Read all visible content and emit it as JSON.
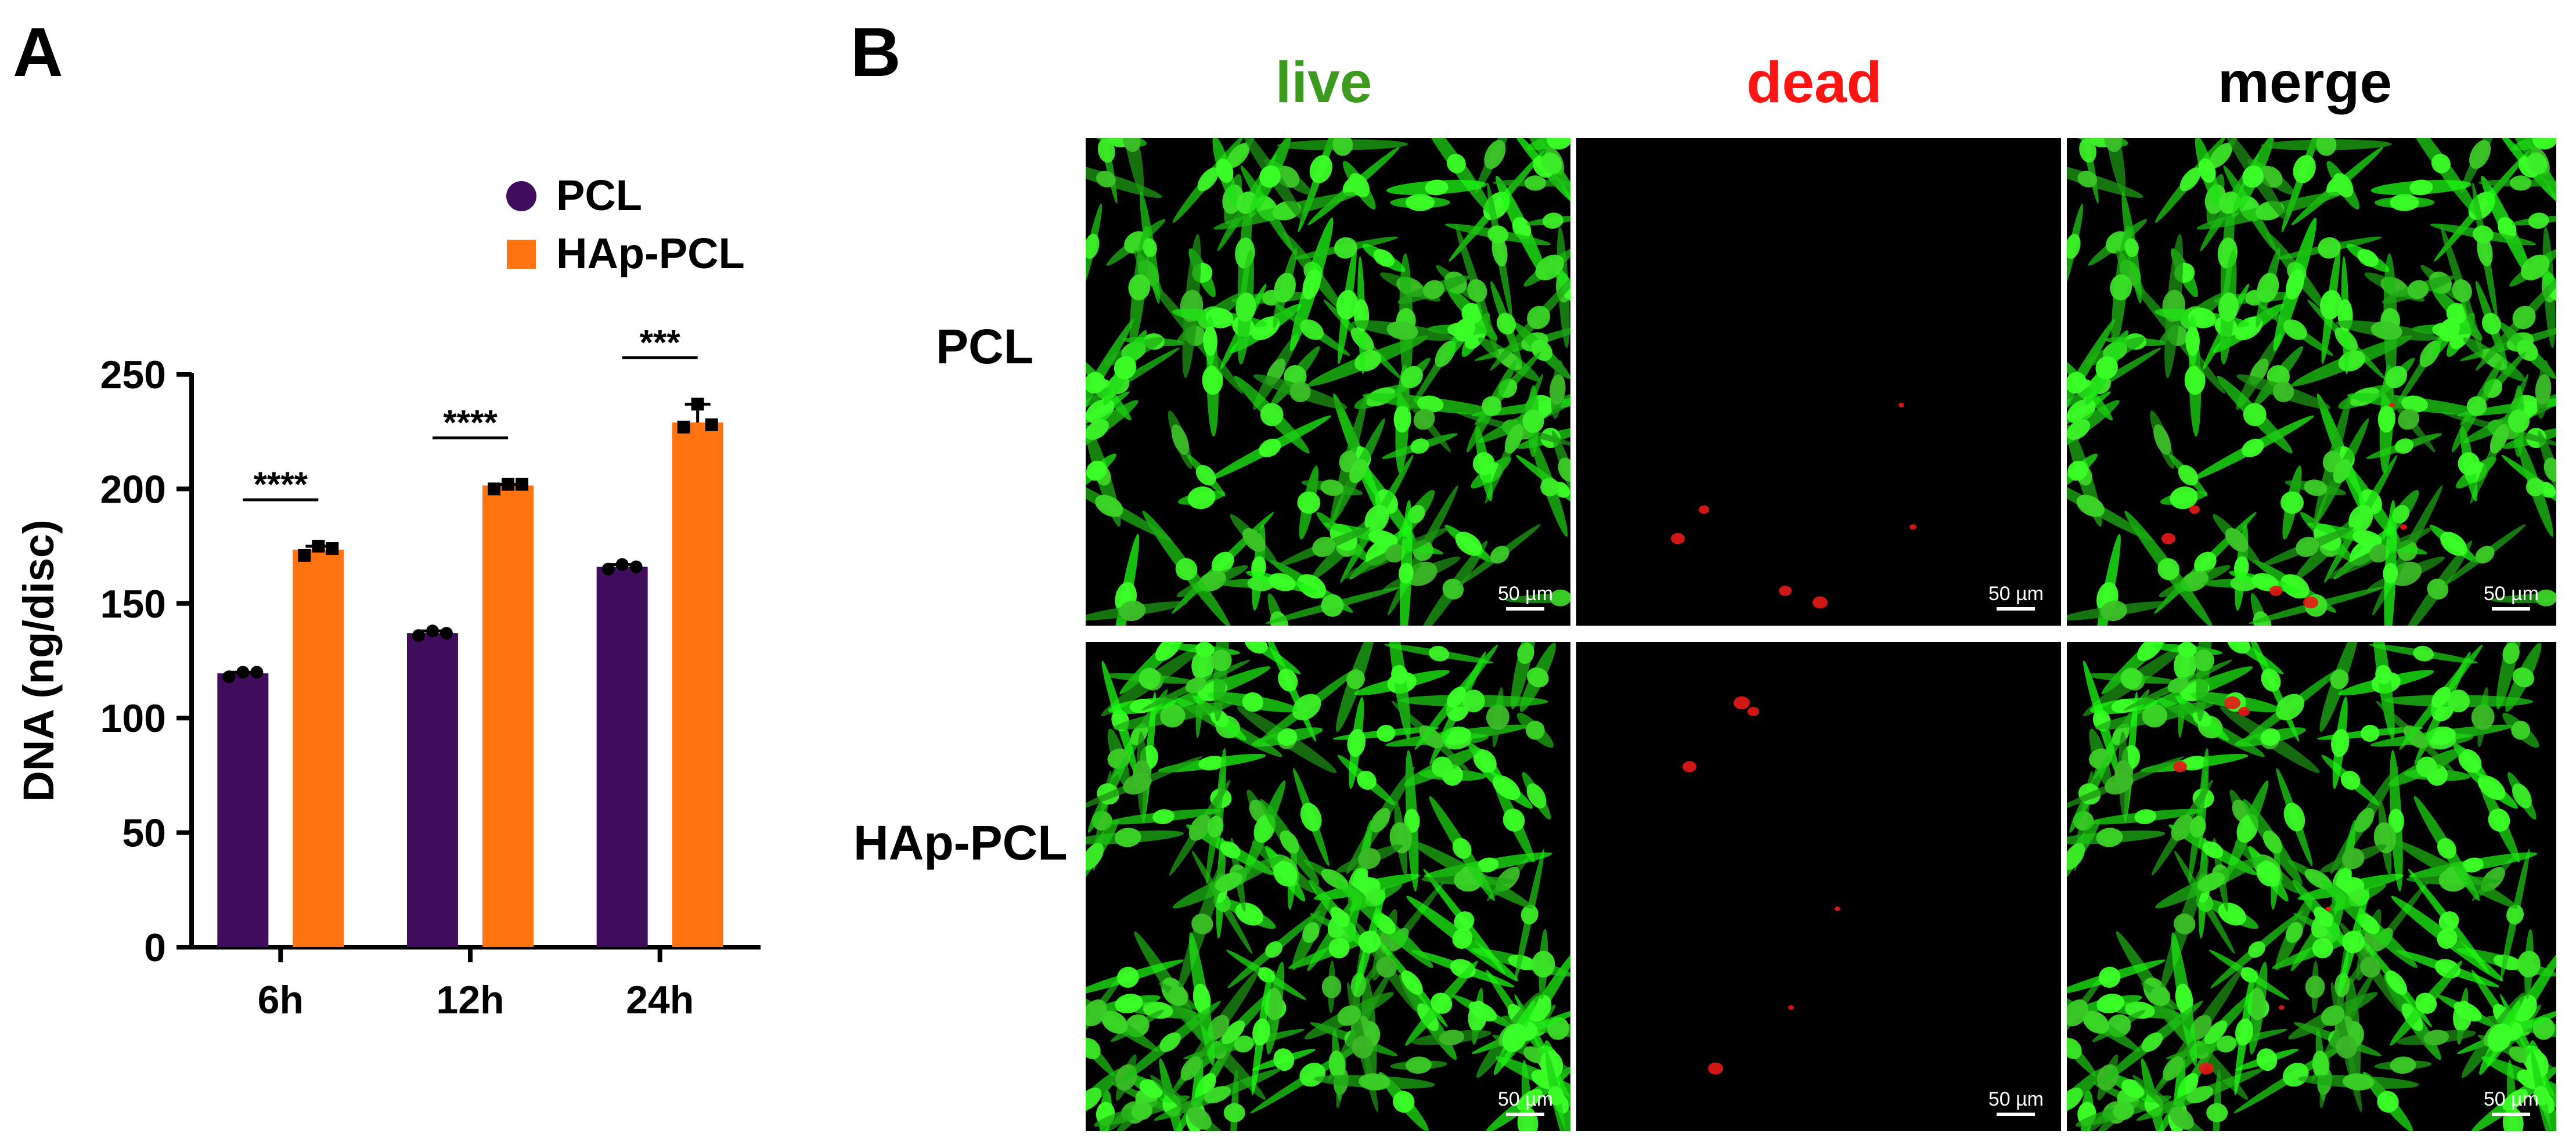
{
  "panels": {
    "a_label": "A",
    "b_label": "B"
  },
  "chart_data": {
    "type": "bar",
    "categories": [
      "6h",
      "12h",
      "24h"
    ],
    "series": [
      {
        "name": "PCL",
        "values": [
          119.5,
          137,
          166
        ],
        "points": [
          [
            118,
            120,
            120
          ],
          [
            136,
            138,
            137
          ],
          [
            165,
            167,
            166
          ]
        ],
        "color": "#3f0d5c",
        "marker": "circle"
      },
      {
        "name": "HAp-PCL",
        "values": [
          173.5,
          201.5,
          229
        ],
        "points": [
          [
            171,
            175,
            174
          ],
          [
            200,
            202,
            202
          ],
          [
            227,
            237,
            228
          ]
        ],
        "color": "#ff7410",
        "marker": "square"
      }
    ],
    "significance": [
      "****",
      "****",
      "***"
    ],
    "ylabel": "DNA (ng/disc)",
    "ylim": [
      0,
      250
    ],
    "yticks": [
      0,
      50,
      100,
      150,
      200,
      250
    ],
    "legend_position": "top"
  },
  "microscopy": {
    "columns": [
      {
        "label": "live",
        "color": "#3c9a1e"
      },
      {
        "label": "dead",
        "color": "#ff1414"
      },
      {
        "label": "merge",
        "color": "#000000"
      }
    ],
    "rows": [
      {
        "label": "PCL"
      },
      {
        "label": "HAp-PCL"
      }
    ],
    "scale_bar": "50 µm"
  }
}
